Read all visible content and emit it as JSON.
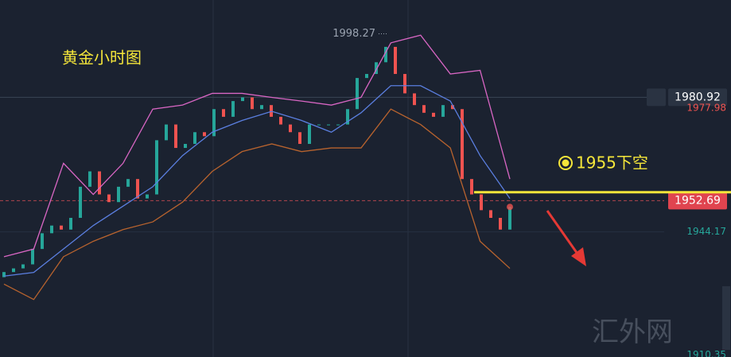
{
  "chart_data": {
    "type": "candlestick",
    "title": "黄金小时图",
    "open": [
      1931.8,
      1933.2,
      1934.2,
      1935.3,
      1939.5,
      1943.8,
      1945.9,
      1944.8,
      1948.0,
      1956.5,
      1960.7,
      1954.4,
      1952.3,
      1956.5,
      1958.6,
      1953.3,
      1954.4,
      1969.2,
      1973.5,
      1967.1,
      1968.2,
      1971.4,
      1970.3,
      1977.7,
      1975.6,
      1979.9,
      1980.9,
      1977.7,
      1978.8,
      1975.6,
      1973.5,
      1971.4,
      1968.2,
      1973.5,
      1973.5,
      1973.5,
      1973.5,
      1977.7,
      1986.2,
      1987.3,
      1990.5,
      1994.7,
      1987.3,
      1982.0,
      1978.8,
      1976.7,
      1975.6,
      1978.8,
      1977.7,
      1958.6,
      1954.4,
      1950.1,
      1948.0,
      1944.8
    ],
    "close": [
      1933.2,
      1934.2,
      1935.3,
      1939.5,
      1943.8,
      1945.9,
      1944.8,
      1948.0,
      1956.5,
      1960.7,
      1954.4,
      1952.3,
      1956.5,
      1958.6,
      1953.3,
      1954.4,
      1969.2,
      1973.5,
      1967.1,
      1968.2,
      1971.4,
      1970.3,
      1977.7,
      1975.6,
      1979.9,
      1980.9,
      1977.7,
      1978.8,
      1975.6,
      1973.5,
      1971.4,
      1968.2,
      1973.5,
      1973.5,
      1973.5,
      1973.5,
      1977.7,
      1986.2,
      1987.3,
      1990.5,
      1994.7,
      1987.3,
      1982.0,
      1978.8,
      1976.7,
      1975.6,
      1978.8,
      1977.7,
      1958.6,
      1954.4,
      1950.1,
      1948.0,
      1944.8,
      1951.0
    ],
    "up_color": "#26a69a",
    "down_color": "#ef5350",
    "bands": {
      "upper": {
        "color": "#d966c4",
        "values": [
          1937.4,
          1939.5,
          1962.9,
          1954.4,
          1962.9,
          1977.7,
          1978.8,
          1982.0,
          1982.0,
          1980.9,
          1979.9,
          1978.8,
          1980.9,
          1995.8,
          1997.9,
          1987.3,
          1988.3,
          1958.6
        ]
      },
      "middle": {
        "color": "#5b7fe0",
        "values": [
          1932.1,
          1933.1,
          1939.5,
          1945.9,
          1951.2,
          1956.5,
          1965.0,
          1971.4,
          1974.6,
          1977.1,
          1974.6,
          1971.4,
          1976.7,
          1984.1,
          1984.1,
          1979.9,
          1965.0,
          1953.3
        ]
      },
      "lower": {
        "color": "#b8632e",
        "values": [
          1929.9,
          1925.7,
          1937.4,
          1941.6,
          1944.8,
          1946.9,
          1952.3,
          1960.7,
          1966.1,
          1968.2,
          1966.1,
          1967.1,
          1967.1,
          1977.7,
          1973.5,
          1967.1,
          1941.6,
          1934.2
        ]
      }
    },
    "ylim": [
      1910,
      2007.5
    ],
    "yticks": [
      1980.92,
      1977.98,
      1952.69,
      1944.17,
      1910.35
    ],
    "high_label": 1998.27,
    "level": {
      "value": 1955,
      "label": "1955下空",
      "color": "#f5e63a"
    },
    "watermark": "汇外网"
  }
}
